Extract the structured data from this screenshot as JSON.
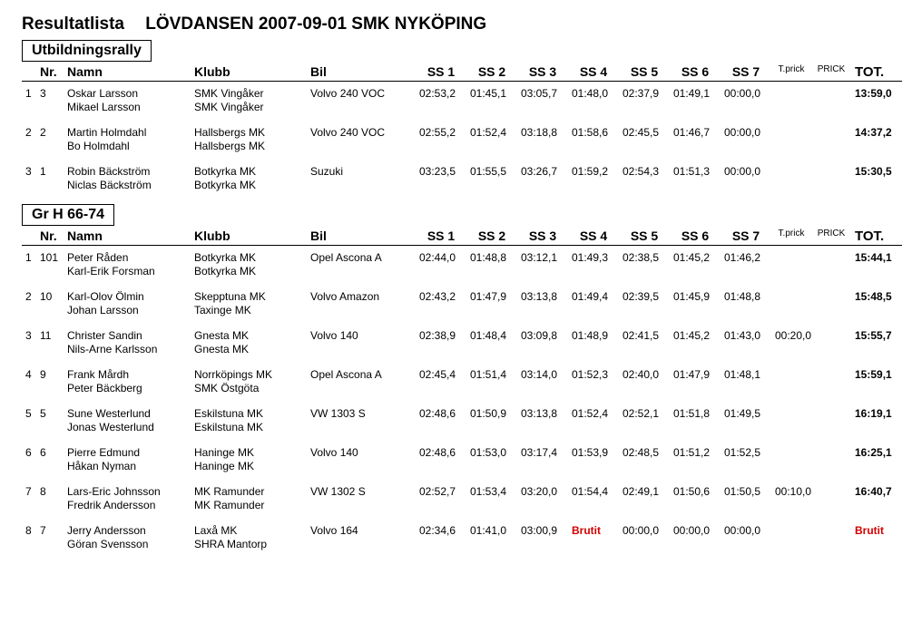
{
  "title1": "Resultatlista",
  "title2": "LÖVDANSEN 2007-09-01 SMK NYKÖPING",
  "columns": {
    "nr": "Nr.",
    "namn": "Namn",
    "klubb": "Klubb",
    "bil": "Bil",
    "ss": [
      "SS 1",
      "SS 2",
      "SS 3",
      "SS 4",
      "SS 5",
      "SS 6",
      "SS 7"
    ],
    "tprick": "T.prick",
    "prick": "PRICK",
    "tot": "TOT."
  },
  "sections": [
    {
      "heading": "Utbildningsrally",
      "rows": [
        {
          "pos": "1",
          "num": "3",
          "driver": "Oskar Larsson",
          "coDriver": "Mikael Larsson",
          "klubb": "SMK Vingåker",
          "coKlubb": "SMK Vingåker",
          "bil": "Volvo 240 VOC",
          "ss": [
            "02:53,2",
            "01:45,1",
            "03:05,7",
            "01:48,0",
            "02:37,9",
            "01:49,1",
            "00:00,0"
          ],
          "tprick": "",
          "prick": "",
          "tot": "13:59,0"
        },
        {
          "pos": "2",
          "num": "2",
          "driver": "Martin Holmdahl",
          "coDriver": "Bo Holmdahl",
          "klubb": "Hallsbergs MK",
          "coKlubb": "Hallsbergs MK",
          "bil": "Volvo 240 VOC",
          "ss": [
            "02:55,2",
            "01:52,4",
            "03:18,8",
            "01:58,6",
            "02:45,5",
            "01:46,7",
            "00:00,0"
          ],
          "tprick": "",
          "prick": "",
          "tot": "14:37,2"
        },
        {
          "pos": "3",
          "num": "1",
          "driver": "Robin Bäckström",
          "coDriver": "Niclas Bäckström",
          "klubb": "Botkyrka MK",
          "coKlubb": "Botkyrka MK",
          "bil": "Suzuki",
          "ss": [
            "03:23,5",
            "01:55,5",
            "03:26,7",
            "01:59,2",
            "02:54,3",
            "01:51,3",
            "00:00,0"
          ],
          "tprick": "",
          "prick": "",
          "tot": "15:30,5"
        }
      ]
    },
    {
      "heading": "Gr H 66-74",
      "rows": [
        {
          "pos": "1",
          "num": "101",
          "driver": "Peter Råden",
          "coDriver": "Karl-Erik Forsman",
          "klubb": "Botkyrka MK",
          "coKlubb": "Botkyrka MK",
          "bil": "Opel Ascona A",
          "ss": [
            "02:44,0",
            "01:48,8",
            "03:12,1",
            "01:49,3",
            "02:38,5",
            "01:45,2",
            "01:46,2"
          ],
          "tprick": "",
          "prick": "",
          "tot": "15:44,1"
        },
        {
          "pos": "2",
          "num": "10",
          "driver": "Karl-Olov Ölmin",
          "coDriver": "Johan Larsson",
          "klubb": "Skepptuna MK",
          "coKlubb": "Taxinge MK",
          "bil": "Volvo Amazon",
          "ss": [
            "02:43,2",
            "01:47,9",
            "03:13,8",
            "01:49,4",
            "02:39,5",
            "01:45,9",
            "01:48,8"
          ],
          "tprick": "",
          "prick": "",
          "tot": "15:48,5"
        },
        {
          "pos": "3",
          "num": "11",
          "driver": "Christer Sandin",
          "coDriver": "Nils-Arne Karlsson",
          "klubb": "Gnesta MK",
          "coKlubb": "Gnesta MK",
          "bil": "Volvo 140",
          "ss": [
            "02:38,9",
            "01:48,4",
            "03:09,8",
            "01:48,9",
            "02:41,5",
            "01:45,2",
            "01:43,0"
          ],
          "tprick": "00:20,0",
          "prick": "",
          "tot": "15:55,7"
        },
        {
          "pos": "4",
          "num": "9",
          "driver": "Frank Mårdh",
          "coDriver": "Peter Bäckberg",
          "klubb": "Norrköpings MK",
          "coKlubb": "SMK Östgöta",
          "bil": "Opel Ascona A",
          "ss": [
            "02:45,4",
            "01:51,4",
            "03:14,0",
            "01:52,3",
            "02:40,0",
            "01:47,9",
            "01:48,1"
          ],
          "tprick": "",
          "prick": "",
          "tot": "15:59,1"
        },
        {
          "pos": "5",
          "num": "5",
          "driver": "Sune Westerlund",
          "coDriver": "Jonas Westerlund",
          "klubb": "Eskilstuna MK",
          "coKlubb": "Eskilstuna MK",
          "bil": "VW 1303 S",
          "ss": [
            "02:48,6",
            "01:50,9",
            "03:13,8",
            "01:52,4",
            "02:52,1",
            "01:51,8",
            "01:49,5"
          ],
          "tprick": "",
          "prick": "",
          "tot": "16:19,1"
        },
        {
          "pos": "6",
          "num": "6",
          "driver": "Pierre Edmund",
          "coDriver": "Håkan Nyman",
          "klubb": "Haninge MK",
          "coKlubb": "Haninge MK",
          "bil": "Volvo 140",
          "ss": [
            "02:48,6",
            "01:53,0",
            "03:17,4",
            "01:53,9",
            "02:48,5",
            "01:51,2",
            "01:52,5"
          ],
          "tprick": "",
          "prick": "",
          "tot": "16:25,1"
        },
        {
          "pos": "7",
          "num": "8",
          "driver": "Lars-Eric Johnsson",
          "coDriver": "Fredrik Andersson",
          "klubb": "MK Ramunder",
          "coKlubb": "MK Ramunder",
          "bil": "VW 1302 S",
          "ss": [
            "02:52,7",
            "01:53,4",
            "03:20,0",
            "01:54,4",
            "02:49,1",
            "01:50,6",
            "01:50,5"
          ],
          "tprick": "00:10,0",
          "prick": "",
          "tot": "16:40,7"
        },
        {
          "pos": "8",
          "num": "7",
          "driver": "Jerry Andersson",
          "coDriver": "Göran Svensson",
          "klubb": "Laxå MK",
          "coKlubb": "SHRA Mantorp",
          "bil": "Volvo 164",
          "ss": [
            "02:34,6",
            "01:41,0",
            "03:00,9",
            "Brutit",
            "00:00,0",
            "00:00,0",
            "00:00,0"
          ],
          "tprick": "",
          "prick": "",
          "tot": "Brutit"
        }
      ]
    }
  ],
  "brutit_text": "Brutit",
  "brutit_color": "#d40000"
}
